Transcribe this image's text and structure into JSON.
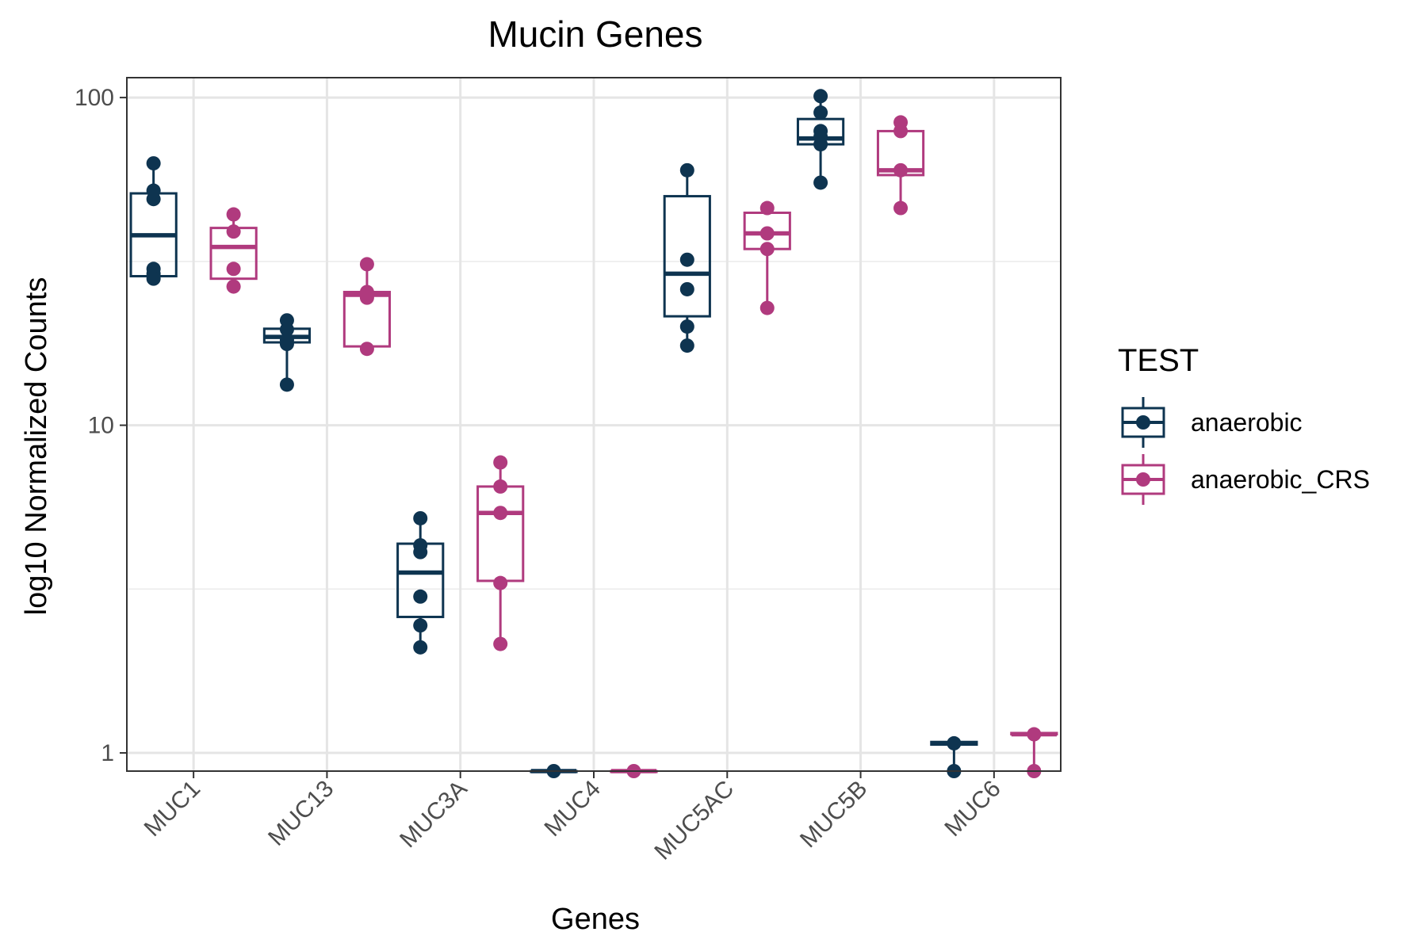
{
  "chart_data": {
    "type": "box",
    "title": "Mucin Genes",
    "xlabel": "Genes",
    "ylabel": "log10 Normalized Counts",
    "y_scale": "log10",
    "ylim": [
      0.88,
      115
    ],
    "y_ticks": [
      1,
      10,
      100
    ],
    "y_tick_labels": [
      "1",
      "10",
      "100"
    ],
    "grid": true,
    "categories": [
      "MUC1",
      "MUC13",
      "MUC3A",
      "MUC4",
      "MUC5AC",
      "MUC5B",
      "MUC6"
    ],
    "legend": {
      "title": "TEST",
      "position": "right"
    },
    "series": [
      {
        "name": "anaerobic",
        "color": "#0e3450",
        "boxes": [
          {
            "category": "MUC1",
            "min": 28,
            "q1": 28.5,
            "median": 38,
            "q3": 51,
            "max": 63,
            "points": [
              63,
              52,
              49,
              30,
              29,
              28
            ]
          },
          {
            "category": "MUC13",
            "min": 13.3,
            "q1": 17.9,
            "median": 18.6,
            "q3": 19.7,
            "max": 20.9,
            "points": [
              20.9,
              19.6,
              18.2,
              17.7,
              13.3
            ]
          },
          {
            "category": "MUC3A",
            "min": 2.1,
            "q1": 2.6,
            "median": 3.55,
            "q3": 4.35,
            "max": 5.2,
            "points": [
              5.2,
              4.3,
              4.1,
              3.0,
              2.45,
              2.1
            ]
          },
          {
            "category": "MUC4",
            "min": 0.88,
            "q1": 0.88,
            "median": 0.88,
            "q3": 0.88,
            "max": 0.88,
            "points": [
              0.88
            ]
          },
          {
            "category": "MUC5AC",
            "min": 17.5,
            "q1": 21.5,
            "median": 29,
            "q3": 50,
            "max": 60,
            "points": [
              60,
              32,
              26,
              20,
              17.5
            ]
          },
          {
            "category": "MUC5B",
            "min": 55,
            "q1": 72,
            "median": 75,
            "q3": 86,
            "max": 101,
            "points": [
              101,
              90,
              79,
              76,
              72,
              55
            ]
          },
          {
            "category": "MUC6",
            "min": 0.88,
            "q1": 1.06,
            "median": 1.07,
            "q3": 1.08,
            "max": 1.08,
            "points": [
              1.07,
              0.88
            ]
          }
        ]
      },
      {
        "name": "anaerobic_CRS",
        "color": "#b03a7e",
        "boxes": [
          {
            "category": "MUC1",
            "min": 26.5,
            "q1": 28,
            "median": 35,
            "q3": 40,
            "max": 44,
            "points": [
              44,
              39,
              30,
              26.5
            ]
          },
          {
            "category": "MUC13",
            "min": 17.1,
            "q1": 17.4,
            "median": 25,
            "q3": 25.5,
            "max": 31,
            "points": [
              31,
              25.5,
              24.5,
              17.1
            ]
          },
          {
            "category": "MUC3A",
            "min": 2.15,
            "q1": 3.35,
            "median": 5.4,
            "q3": 6.5,
            "max": 7.7,
            "points": [
              7.7,
              6.5,
              5.4,
              3.3,
              2.15
            ]
          },
          {
            "category": "MUC4",
            "min": 0.88,
            "q1": 0.88,
            "median": 0.88,
            "q3": 0.88,
            "max": 0.88,
            "points": [
              0.88
            ]
          },
          {
            "category": "MUC5AC",
            "min": 22.8,
            "q1": 34.5,
            "median": 38.5,
            "q3": 44.5,
            "max": 46,
            "points": [
              46,
              38.5,
              34.5,
              22.8
            ]
          },
          {
            "category": "MUC5B",
            "min": 46,
            "q1": 58,
            "median": 60,
            "q3": 79,
            "max": 84,
            "points": [
              84,
              79,
              60,
              46
            ]
          },
          {
            "category": "MUC6",
            "min": 0.88,
            "q1": 1.14,
            "median": 1.14,
            "q3": 1.15,
            "max": 1.15,
            "points": [
              1.14,
              0.88
            ]
          }
        ]
      }
    ]
  }
}
